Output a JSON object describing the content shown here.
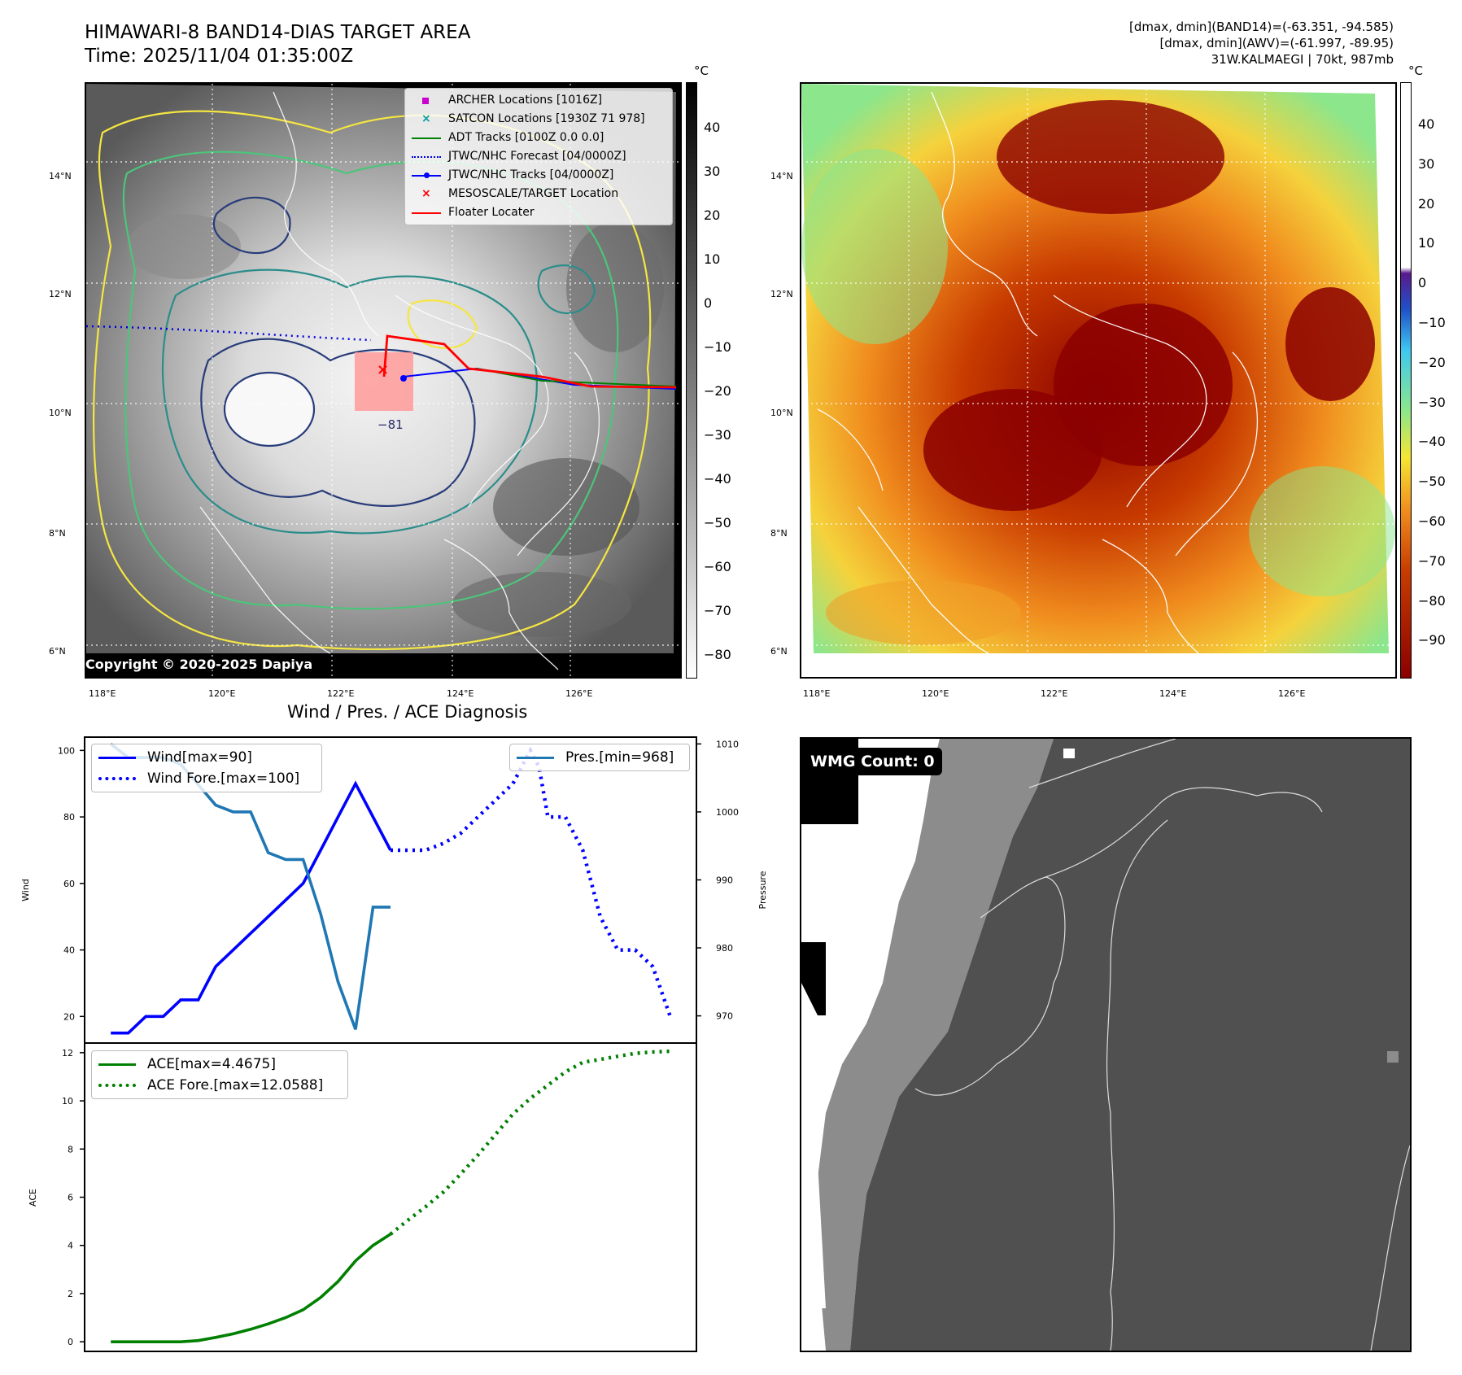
{
  "header": {
    "title_line1": "HIMAWARI-8 BAND14-DIAS TARGET AREA",
    "title_line2": "Time: 2025/11/04 01:35:00Z",
    "stats_line1": "[dmax, dmin](BAND14)=(-63.351, -94.585)",
    "stats_line2": "[dmax, dmin](AWV)=(-61.997, -89.95)",
    "stats_line3": "31W.KALMAEGI | 70kt, 987mb"
  },
  "map_axes": {
    "lon_labels": [
      "118°E",
      "120°E",
      "122°E",
      "124°E",
      "126°E"
    ],
    "lat_labels": [
      "14°N",
      "12°N",
      "10°N",
      "8°N",
      "6°N"
    ]
  },
  "map_left": {
    "unit": "°C",
    "colorbar_ticks": [
      "40",
      "30",
      "20",
      "10",
      "0",
      "−10",
      "−20",
      "−30",
      "−40",
      "−50",
      "−60",
      "−70",
      "−80"
    ],
    "contour_label": "−81",
    "copyright": "Copyright © 2020-2025 Dapiya",
    "legend": [
      {
        "label": "ARCHER Locations [1016Z]",
        "color": "#cc00cc",
        "marker": "square"
      },
      {
        "label": "SATCON Locations [1930Z 71 978]",
        "color": "#00a0a0",
        "marker": "x"
      },
      {
        "label": "ADT Tracks [0100Z 0.0 0.0]",
        "color": "#008000",
        "marker": "line"
      },
      {
        "label": "JTWC/NHC Forecast [04/0000Z]",
        "color": "#0000dd",
        "marker": "dotted"
      },
      {
        "label": "JTWC/NHC Tracks [04/0000Z]",
        "color": "#0000ff",
        "marker": "line-dot"
      },
      {
        "label": "MESOSCALE/TARGET Location",
        "color": "#ff0000",
        "marker": "x"
      },
      {
        "label": "Floater Locater",
        "color": "#ff0000",
        "marker": "line"
      }
    ]
  },
  "map_right": {
    "unit": "°C",
    "colorbar_ticks": [
      "40",
      "30",
      "20",
      "10",
      "0",
      "−10",
      "−20",
      "−30",
      "−40",
      "−50",
      "−60",
      "−70",
      "−80",
      "−90"
    ]
  },
  "wmg": {
    "label": "WMG Count: 0"
  },
  "chart_data": [
    {
      "type": "line",
      "title": "Wind / Pres. / ACE Diagnosis",
      "ylabel": "Wind",
      "y2label": "Pressure",
      "ylim": [
        12,
        104
      ],
      "y2lim": [
        966,
        1011
      ],
      "yticks": [
        "20",
        "40",
        "60",
        "80",
        "100"
      ],
      "y2ticks": [
        "970",
        "980",
        "990",
        "1000",
        "1010"
      ],
      "legend_left": [
        {
          "label": "Wind[max=90]",
          "color": "#0000ff",
          "style": "solid"
        },
        {
          "label": "Wind Fore.[max=100]",
          "color": "#0000ff",
          "style": "dotted"
        }
      ],
      "legend_right": [
        {
          "label": "Pres.[min=968]",
          "color": "#1f77b4",
          "style": "solid"
        }
      ],
      "series": [
        {
          "name": "Wind[max=90]",
          "axis": "left",
          "color": "#0000ff",
          "style": "solid",
          "x": [
            0,
            1,
            2,
            3,
            4,
            5,
            6,
            7,
            8,
            9,
            10,
            11,
            12,
            13,
            14,
            15,
            16
          ],
          "values": [
            15,
            15,
            20,
            20,
            25,
            25,
            35,
            40,
            45,
            50,
            55,
            60,
            70,
            80,
            90,
            80,
            70
          ]
        },
        {
          "name": "Wind Fore.[max=100]",
          "axis": "left",
          "color": "#0000ff",
          "style": "dotted",
          "x": [
            16,
            18,
            19,
            20,
            21,
            22,
            23,
            24,
            24.5,
            25,
            26,
            27,
            27.5,
            28,
            29,
            30,
            31,
            32
          ],
          "values": [
            70,
            70,
            72,
            75,
            80,
            85,
            90,
            100,
            95,
            80,
            80,
            70,
            60,
            50,
            40,
            40,
            35,
            20
          ]
        },
        {
          "name": "Pres.[min=968]",
          "axis": "right",
          "color": "#1f77b4",
          "style": "solid",
          "x": [
            0,
            1,
            2,
            3,
            4,
            5,
            6,
            7,
            8,
            9,
            10,
            11,
            12,
            13,
            14,
            15,
            16
          ],
          "values": [
            1010,
            1008,
            1008,
            1008,
            1007,
            1004,
            1001,
            1000,
            1000,
            994,
            993,
            993,
            985,
            975,
            968,
            986,
            986
          ]
        }
      ]
    },
    {
      "type": "line",
      "ylabel": "ACE",
      "ylim": [
        -0.4,
        12.4
      ],
      "yticks": [
        "0",
        "2",
        "4",
        "6",
        "8",
        "10",
        "12"
      ],
      "legend": [
        {
          "label": "ACE[max=4.4675]",
          "color": "#008000",
          "style": "solid"
        },
        {
          "label": "ACE Fore.[max=12.0588]",
          "color": "#008000",
          "style": "dotted"
        }
      ],
      "series": [
        {
          "name": "ACE[max=4.4675]",
          "color": "#008000",
          "style": "solid",
          "x": [
            0,
            1,
            2,
            3,
            4,
            5,
            6,
            7,
            8,
            9,
            10,
            11,
            12,
            13,
            14,
            15,
            16
          ],
          "values": [
            0,
            0,
            0,
            0,
            0,
            0.05,
            0.18,
            0.33,
            0.52,
            0.74,
            1.0,
            1.33,
            1.84,
            2.5,
            3.36,
            4.0,
            4.4675
          ]
        },
        {
          "name": "ACE Fore.[max=12.0588]",
          "color": "#008000",
          "style": "dotted",
          "x": [
            16,
            17,
            18,
            19,
            20,
            21,
            22,
            23,
            24,
            25,
            26,
            27,
            28,
            29,
            30,
            31,
            32
          ],
          "values": [
            4.4675,
            5.05,
            5.6,
            6.2,
            6.95,
            7.75,
            8.6,
            9.45,
            10.1,
            10.65,
            11.2,
            11.6,
            11.72,
            11.85,
            11.97,
            12.03,
            12.0588
          ]
        }
      ]
    }
  ]
}
